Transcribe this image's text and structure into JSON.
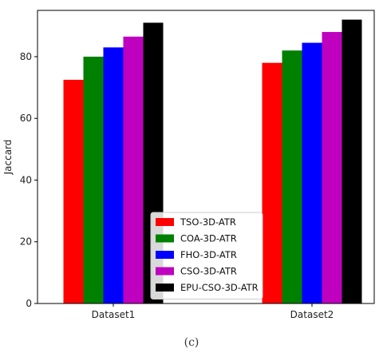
{
  "chart_data": {
    "type": "bar",
    "categories": [
      "Dataset1",
      "Dataset2"
    ],
    "series": [
      {
        "name": "TSO-3D-ATR",
        "color": "#ff0000",
        "values": [
          72.5,
          78.0
        ]
      },
      {
        "name": "COA-3D-ATR",
        "color": "#008000",
        "values": [
          80.0,
          82.0
        ]
      },
      {
        "name": "FHO-3D-ATR",
        "color": "#0000ff",
        "values": [
          83.0,
          84.5
        ]
      },
      {
        "name": "CSO-3D-ATR",
        "color": "#bf00bf",
        "values": [
          86.5,
          88.0
        ]
      },
      {
        "name": "EPU-CSO-3D-ATR",
        "color": "#000000",
        "values": [
          91.0,
          92.0
        ]
      }
    ],
    "title": "",
    "xlabel": "",
    "ylabel": "Jaccard",
    "ylim": [
      0,
      95
    ],
    "yticks": [
      0,
      20,
      40,
      60,
      80
    ],
    "legend": "bottom-center",
    "grid": false
  },
  "caption": "(c)"
}
